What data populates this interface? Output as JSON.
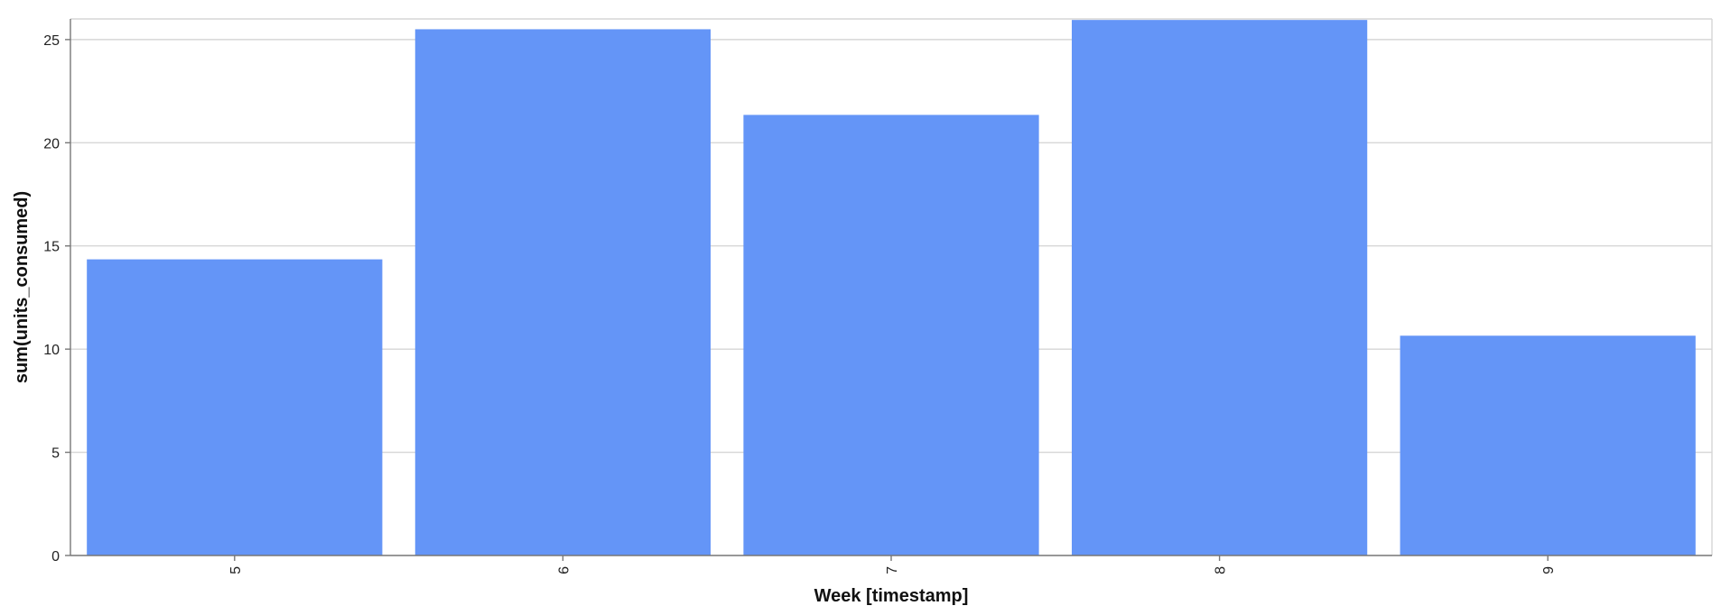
{
  "chart_data": {
    "type": "bar",
    "title": "",
    "xlabel": "Week [timestamp]",
    "ylabel": "sum(units_consumed)",
    "categories": [
      "5",
      "6",
      "7",
      "8",
      "9"
    ],
    "values": [
      14.35,
      25.5,
      21.35,
      25.95,
      10.65
    ],
    "ylim": [
      0,
      26
    ],
    "yticks": [
      0,
      5,
      10,
      15,
      20,
      25
    ],
    "grid": true,
    "bar_color": "#6495f7",
    "grid_color": "#d6d6d6",
    "axis_color": "#777777"
  }
}
